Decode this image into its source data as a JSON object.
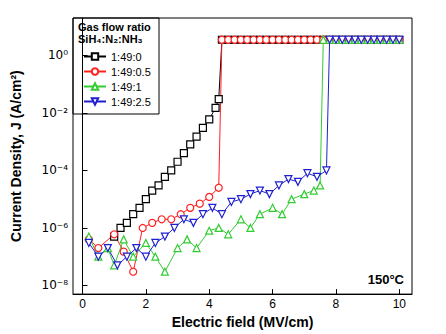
{
  "chart_data": {
    "type": "line",
    "x_label": "Electric field (MV/cm)",
    "y_label": "Current Density, J (A/cm²)",
    "legend_title": [
      "Gas flow ratio",
      "SiH₄:N₂:NH₃"
    ],
    "annotations": [
      "150°C"
    ],
    "log": "y",
    "grid": false,
    "legend": "upper left",
    "xlim": [
      -0.3,
      10.4
    ],
    "xticks": [
      0,
      2,
      4,
      6,
      8,
      10
    ],
    "ylim": [
      5e-09,
      20
    ],
    "yticks": [
      {
        "value": 1e-08,
        "label": "10⁻⁸"
      },
      {
        "value": 1e-06,
        "label": "10⁻⁶"
      },
      {
        "value": 0.0001,
        "label": "10⁻⁴"
      },
      {
        "value": 0.01,
        "label": "10⁻²"
      },
      {
        "value": 1,
        "label": "10⁰"
      }
    ],
    "series": [
      {
        "name": "1:49:0",
        "color": "#000000",
        "marker": "square",
        "x": [
          1.0,
          1.2,
          1.4,
          1.6,
          1.8,
          2.0,
          2.2,
          2.4,
          2.6,
          2.8,
          3.0,
          3.2,
          3.4,
          3.6,
          3.8,
          4.0,
          4.2,
          4.3,
          4.4,
          4.6,
          4.8,
          5.0,
          5.2,
          5.4,
          5.6,
          5.8,
          6.0,
          6.2,
          6.4,
          6.6,
          6.8,
          7.0,
          7.2,
          7.4,
          7.6,
          7.8,
          8.0,
          8.2,
          8.4,
          8.6,
          8.8,
          9.0,
          9.2,
          9.4,
          9.6,
          9.8,
          10.0
        ],
        "values": [
          5e-07,
          1e-06,
          1.5e-06,
          3e-06,
          5e-06,
          1e-05,
          2e-05,
          3e-05,
          6e-05,
          0.0001,
          0.0002,
          0.0004,
          0.0008,
          0.0015,
          0.003,
          0.006,
          0.015,
          0.03,
          3.5,
          3.5,
          3.5,
          3.5,
          3.5,
          3.5,
          3.5,
          3.5,
          3.5,
          3.5,
          3.5,
          3.5,
          3.5,
          3.5,
          3.5,
          3.5,
          3.5,
          3.5,
          3.5,
          3.5,
          3.5,
          3.5,
          3.5,
          3.5,
          3.5,
          3.5,
          3.5,
          3.5,
          3.5
        ]
      },
      {
        "name": "1:49:0.5",
        "color": "#ff2020",
        "marker": "circle",
        "x": [
          0.2,
          0.5,
          1.0,
          1.3,
          1.6,
          1.9,
          2.2,
          2.5,
          2.8,
          3.1,
          3.4,
          3.7,
          4.0,
          4.3,
          4.4,
          4.6,
          4.8,
          5.0,
          5.2,
          5.4,
          5.6,
          5.8,
          6.0,
          6.2,
          6.4,
          6.6,
          6.8,
          7.0,
          7.2,
          7.4,
          7.6,
          7.8,
          8.0,
          8.2,
          8.4,
          8.6,
          8.8,
          9.0,
          9.2,
          9.4,
          9.6,
          9.8,
          10.0
        ],
        "values": [
          4e-07,
          2e-07,
          6e-07,
          1.5e-07,
          3e-08,
          1e-06,
          1.5e-06,
          2e-06,
          2e-06,
          3e-06,
          5e-06,
          7e-06,
          1.2e-05,
          2.5e-05,
          3.5,
          3.5,
          3.5,
          3.5,
          3.5,
          3.5,
          3.5,
          3.5,
          3.5,
          3.5,
          3.5,
          3.5,
          3.5,
          3.5,
          3.5,
          3.5,
          3.5,
          3.5,
          3.5,
          3.5,
          3.5,
          3.5,
          3.5,
          3.5,
          3.5,
          3.5,
          3.5,
          3.5,
          3.5
        ]
      },
      {
        "name": "1:49:1",
        "color": "#33cc33",
        "marker": "triangle",
        "x": [
          0.2,
          0.5,
          0.8,
          1.0,
          1.3,
          1.6,
          2.0,
          2.3,
          2.6,
          3.0,
          3.3,
          3.6,
          4.0,
          4.3,
          4.6,
          5.0,
          5.3,
          5.6,
          6.0,
          6.3,
          6.6,
          7.0,
          7.3,
          7.5,
          7.6,
          7.8,
          8.0,
          8.2,
          8.4,
          8.6,
          8.8,
          9.0,
          9.2,
          9.4,
          9.6,
          9.8,
          10.0
        ],
        "values": [
          5e-07,
          1e-07,
          2e-07,
          5e-08,
          4e-07,
          1e-07,
          3e-07,
          1e-07,
          3e-08,
          2e-07,
          4e-07,
          2e-07,
          8e-07,
          1e-06,
          6e-07,
          2e-06,
          1e-06,
          3e-06,
          5e-06,
          3e-06,
          1e-05,
          1.5e-05,
          2e-05,
          3e-05,
          3.5,
          3.5,
          3.5,
          3.5,
          3.5,
          3.5,
          3.5,
          3.5,
          3.5,
          3.5,
          3.5,
          3.5,
          3.5
        ]
      },
      {
        "name": "1:49:2.5",
        "color": "#2020d0",
        "marker": "triangle_down",
        "x": [
          0.2,
          0.5,
          0.8,
          1.1,
          1.4,
          1.7,
          2.0,
          2.3,
          2.6,
          2.9,
          3.2,
          3.5,
          3.8,
          4.1,
          4.4,
          4.7,
          5.0,
          5.3,
          5.6,
          5.9,
          6.2,
          6.5,
          6.8,
          7.1,
          7.4,
          7.7,
          7.8,
          8.0,
          8.2,
          8.4,
          8.6,
          8.8,
          9.0,
          9.2,
          9.4,
          9.6,
          9.8,
          10.0
        ],
        "values": [
          3e-07,
          1e-07,
          2e-07,
          5e-08,
          1e-07,
          2e-07,
          1e-07,
          3e-07,
          5e-07,
          1e-06,
          2e-06,
          1.5e-06,
          3e-06,
          5e-06,
          3e-06,
          8e-06,
          1e-05,
          1.5e-05,
          2e-05,
          1.5e-05,
          3e-05,
          5e-05,
          4e-05,
          8e-05,
          6e-05,
          0.0001,
          3.5,
          3.5,
          3.5,
          3.5,
          3.5,
          3.5,
          3.5,
          3.5,
          3.5,
          3.5,
          3.5,
          3.5
        ]
      }
    ]
  }
}
